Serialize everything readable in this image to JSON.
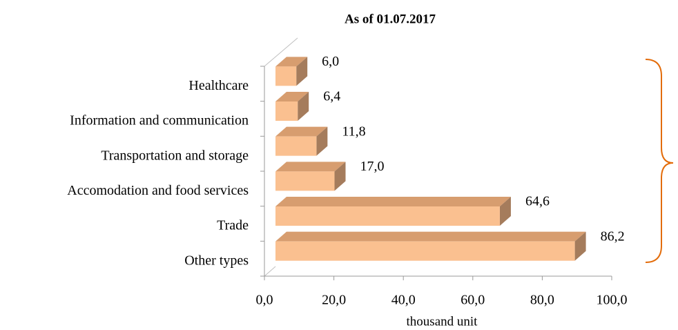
{
  "chart_data": {
    "type": "bar3d_horizontal",
    "title": "As of  01.07.2017",
    "x_label": "thousand unit",
    "categories": [
      "Healthcare",
      "Information and communication",
      "Transportation and storage",
      "Accomodation and food services",
      "Trade",
      "Other types"
    ],
    "values": [
      6.0,
      6.4,
      11.8,
      17.0,
      64.6,
      86.2
    ],
    "value_labels": [
      "6,0",
      "6,4",
      "11,8",
      "17,0",
      "64,6",
      "86,2"
    ],
    "color": "#fac090",
    "xlim": [
      0,
      100
    ],
    "xticks": [
      {
        "value": 0,
        "label": "0,0"
      },
      {
        "value": 20,
        "label": "20,0"
      },
      {
        "value": 40,
        "label": "40,0"
      },
      {
        "value": 60,
        "label": "60,0"
      },
      {
        "value": 80,
        "label": "80,0"
      },
      {
        "value": 100,
        "label": "100,0"
      }
    ]
  }
}
